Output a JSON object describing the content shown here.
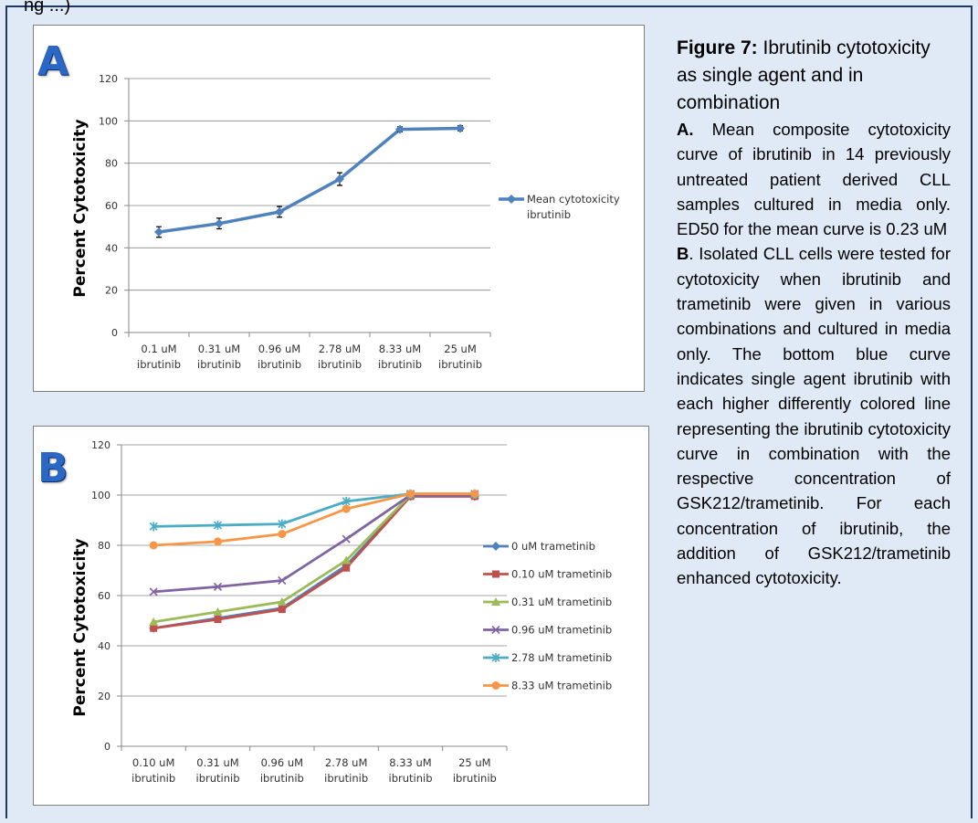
{
  "top_text": "ng ...)",
  "chart_data": [
    {
      "panel": "A",
      "type": "line",
      "ylabel": "Percent Cytotoxicity",
      "ylim": [
        0,
        120
      ],
      "yticks": [
        0,
        20,
        40,
        60,
        80,
        100,
        120
      ],
      "grid": true,
      "legend_position": "right",
      "categories": [
        [
          "0.1 uM",
          "ibrutinib"
        ],
        [
          "0.31 uM",
          "ibrutinib"
        ],
        [
          "0.96 uM",
          "ibrutinib"
        ],
        [
          "2.78 uM",
          "ibrutinib"
        ],
        [
          "8.33 uM",
          "ibrutinib"
        ],
        [
          "25 uM",
          "ibrutinib"
        ]
      ],
      "series": [
        {
          "name": "Mean cytotoxicity ibrutinib",
          "legend_lines": [
            "Mean cytotoxicity",
            "ibrutinib"
          ],
          "color": "#4f81bd",
          "marker": "diamond",
          "values": [
            47.5,
            51.5,
            57,
            72.5,
            96,
            96.5
          ],
          "error": [
            2.5,
            2.5,
            2.5,
            3,
            1.2,
            1.2
          ]
        }
      ]
    },
    {
      "panel": "B",
      "type": "line",
      "ylabel": "Percent Cytotoxicity",
      "ylim": [
        0,
        120
      ],
      "yticks": [
        0,
        20,
        40,
        60,
        80,
        100,
        120
      ],
      "grid": true,
      "legend_position": "right",
      "categories": [
        [
          "0.10 uM",
          "ibrutinib"
        ],
        [
          "0.31 uM",
          "ibrutinib"
        ],
        [
          "0.96 uM",
          "ibrutinib"
        ],
        [
          "2.78 uM",
          "ibrutinib"
        ],
        [
          "8.33 uM",
          "ibrutinib"
        ],
        [
          "25 uM",
          "ibrutinib"
        ]
      ],
      "series": [
        {
          "name": "0 uM trametinib",
          "color": "#4f81bd",
          "marker": "diamond",
          "values": [
            47,
            51,
            55,
            72,
            99.5,
            99.5
          ]
        },
        {
          "name": "0.10 uM trametinib",
          "color": "#c0504d",
          "marker": "square",
          "values": [
            47,
            50.5,
            54.5,
            71,
            99.5,
            99.5
          ]
        },
        {
          "name": "0.31 uM trametinib",
          "color": "#9bbb59",
          "marker": "triangle",
          "values": [
            49.5,
            53.5,
            57.5,
            74,
            100,
            100
          ]
        },
        {
          "name": "0.96 uM trametinib",
          "color": "#8064a2",
          "marker": "x",
          "values": [
            61.5,
            63.5,
            66,
            82.5,
            100,
            100
          ]
        },
        {
          "name": "2.78 uM trametinib",
          "color": "#4bacc6",
          "marker": "star",
          "values": [
            87.5,
            88,
            88.5,
            97.5,
            100.5,
            100.5
          ]
        },
        {
          "name": "8.33 uM trametinib",
          "color": "#f79646",
          "marker": "circle",
          "values": [
            80,
            81.5,
            84.5,
            94.5,
            100.5,
            100.5
          ]
        }
      ]
    }
  ],
  "caption": {
    "title_bold": "Figure 7:",
    "title_rest": " Ibrutinib cytotoxicity as single agent and in combination",
    "a_label": "A.",
    "a_text": " Mean composite cytotoxicity curve of ibrutinib in 14 previously untreated patient derived CLL samples cultured in media only. ED50 for the mean curve is 0.23 uM",
    "b_label": "B",
    "b_text": ". Isolated CLL cells were tested for cytotoxicity when ibrutinib and trametinib were given in various combinations and cultured in media only. The bottom blue curve indicates single agent ibrutinib with each higher differently colored line representing the ibrutinib cytotoxicity curve in combination with the respective concentration of GSK212/trametinib. For each concentration of ibrutinib, the addition of GSK212/trametinib enhanced cytotoxicity."
  }
}
